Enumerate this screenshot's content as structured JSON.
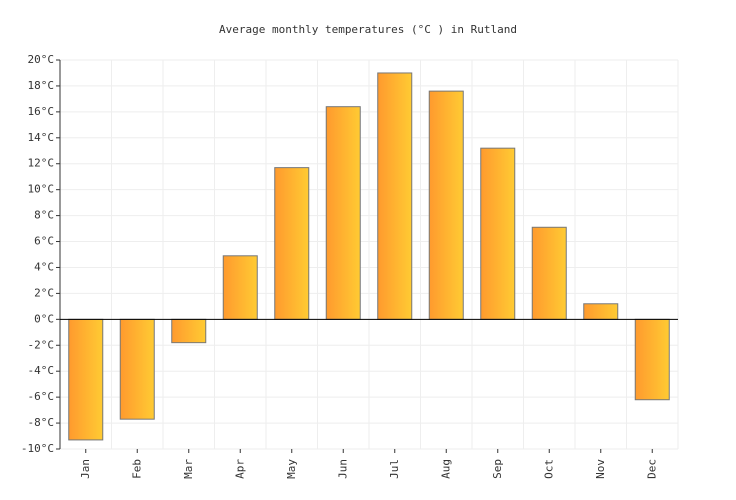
{
  "chart_data": {
    "type": "bar",
    "title": "Average monthly temperatures (°C ) in Rutland",
    "categories": [
      "Jan",
      "Feb",
      "Mar",
      "Apr",
      "May",
      "Jun",
      "Jul",
      "Aug",
      "Sep",
      "Oct",
      "Nov",
      "Dec"
    ],
    "values": [
      -9.3,
      -7.7,
      -1.8,
      4.9,
      11.7,
      16.4,
      19.0,
      17.6,
      13.2,
      7.1,
      1.2,
      -6.2
    ],
    "colors": [
      "#ff9a2e",
      "#ffcb33"
    ],
    "ylim": [
      -10,
      20
    ],
    "yticks": [
      {
        "value": -10,
        "label": "-10°C"
      },
      {
        "value": -8,
        "label": "-8°C"
      },
      {
        "value": -6,
        "label": "-6°C"
      },
      {
        "value": -4,
        "label": "-4°C"
      },
      {
        "value": -2,
        "label": "-2°C"
      },
      {
        "value": 0,
        "label": "0°C"
      },
      {
        "value": 2,
        "label": "2°C"
      },
      {
        "value": 4,
        "label": "4°C"
      },
      {
        "value": 6,
        "label": "6°C"
      },
      {
        "value": 8,
        "label": "8°C"
      },
      {
        "value": 10,
        "label": "10°C"
      },
      {
        "value": 12,
        "label": "12°C"
      },
      {
        "value": 14,
        "label": "14°C"
      },
      {
        "value": 16,
        "label": "16°C"
      },
      {
        "value": 18,
        "label": "18°C"
      },
      {
        "value": 20,
        "label": "20°C"
      }
    ],
    "grid": true
  }
}
